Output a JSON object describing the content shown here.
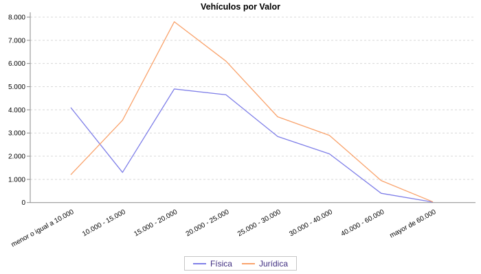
{
  "chart_data": {
    "type": "line",
    "title": "Vehículos por Valor",
    "categories": [
      "menor o igual a 10.000",
      "10.000 - 15.000",
      "15.000 - 20.000",
      "20.000 - 25.000",
      "25.000 - 30.000",
      "30.000 - 40.000",
      "40.000 - 60.000",
      "mayor de 60.000"
    ],
    "series": [
      {
        "name": "Física",
        "color": "#7e7ee8",
        "values": [
          4100,
          1300,
          4900,
          4650,
          2850,
          2100,
          400,
          20
        ]
      },
      {
        "name": "Jurídica",
        "color": "#f9a26b",
        "values": [
          1200,
          3550,
          7800,
          6100,
          3700,
          2900,
          950,
          30
        ]
      }
    ],
    "ylim": [
      0,
      8000
    ],
    "y_tick_step": 1000,
    "y_tick_labels": [
      "0",
      "1.000",
      "2.000",
      "3.000",
      "4.000",
      "5.000",
      "6.000",
      "7.000",
      "8.000"
    ],
    "grid": "horizontal-dashed",
    "legend_position": "bottom-center",
    "x_label_rotation_deg": -29
  },
  "colors": {
    "background": "#ffffff",
    "axis_line": "#8a8a8a",
    "gridline": "#d8d8d8",
    "tick_label_text": "#000000",
    "title_text": "#000000",
    "legend_text": "#3f2d80",
    "legend_border": "#c6c6c6"
  }
}
